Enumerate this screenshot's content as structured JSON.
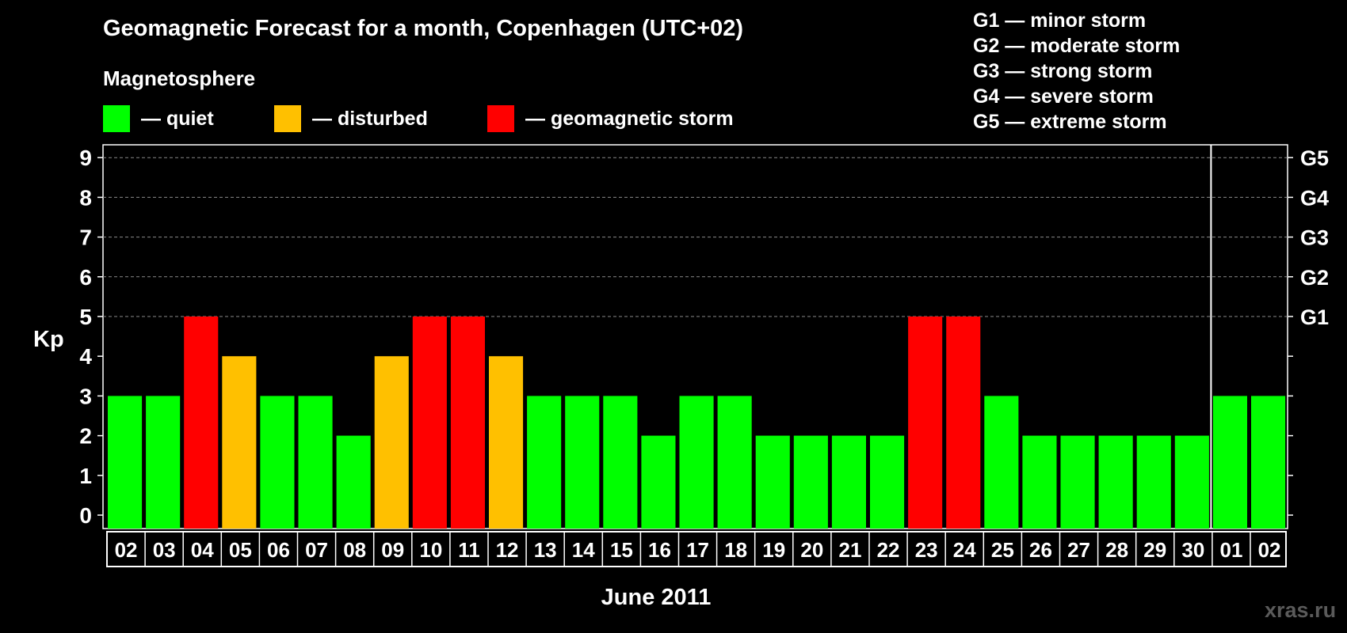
{
  "title": "Geomagnetic Forecast for a month, Copenhagen (UTC+02)",
  "subtitle": "Magnetosphere",
  "legend": [
    {
      "label": "— quiet",
      "color": "#00ff00"
    },
    {
      "label": "— disturbed",
      "color": "#ffc000"
    },
    {
      "label": "— geomagnetic storm",
      "color": "#ff0000"
    }
  ],
  "storm_levels": [
    "G1 — minor storm",
    "G2 — moderate storm",
    "G3 — strong storm",
    "G4 — severe storm",
    "G5 — extreme storm"
  ],
  "watermark": "xras.ru",
  "colors": {
    "quiet": "#00ff00",
    "disturbed": "#ffc000",
    "storm": "#ff0000",
    "background": "#000000",
    "axis": "#ffffff"
  },
  "chart_data": {
    "type": "bar",
    "xlabel": "June 2011",
    "ylabel": "Kp",
    "ylim": [
      0,
      9
    ],
    "yticks": [
      "0",
      "1",
      "2",
      "3",
      "4",
      "5",
      "6",
      "7",
      "8",
      "9"
    ],
    "right_ticks": [
      {
        "value": 5,
        "label": "G1"
      },
      {
        "value": 6,
        "label": "G2"
      },
      {
        "value": 7,
        "label": "G3"
      },
      {
        "value": 8,
        "label": "G4"
      },
      {
        "value": 9,
        "label": "G5"
      }
    ],
    "grid": "dashed horizontal at 5–9",
    "month_divider_after": "30",
    "categories": [
      "02",
      "03",
      "04",
      "05",
      "06",
      "07",
      "08",
      "09",
      "10",
      "11",
      "12",
      "13",
      "14",
      "15",
      "16",
      "17",
      "18",
      "19",
      "20",
      "21",
      "22",
      "23",
      "24",
      "25",
      "26",
      "27",
      "28",
      "29",
      "30",
      "01",
      "02"
    ],
    "values": [
      3,
      3,
      5,
      4,
      3,
      3,
      2,
      4,
      5,
      5,
      4,
      3,
      3,
      3,
      2,
      3,
      3,
      2,
      2,
      2,
      2,
      5,
      5,
      3,
      2,
      2,
      2,
      2,
      2,
      3,
      3
    ],
    "status": [
      "quiet",
      "quiet",
      "storm",
      "disturbed",
      "quiet",
      "quiet",
      "quiet",
      "disturbed",
      "storm",
      "storm",
      "disturbed",
      "quiet",
      "quiet",
      "quiet",
      "quiet",
      "quiet",
      "quiet",
      "quiet",
      "quiet",
      "quiet",
      "quiet",
      "storm",
      "storm",
      "quiet",
      "quiet",
      "quiet",
      "quiet",
      "quiet",
      "quiet",
      "quiet",
      "quiet"
    ]
  }
}
